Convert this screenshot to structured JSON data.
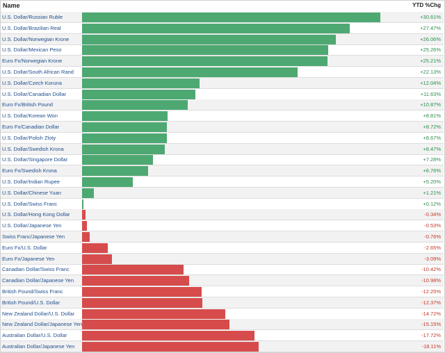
{
  "header": {
    "name_label": "Name",
    "value_label": "YTD %Chg"
  },
  "colors": {
    "positive": "#4ea872",
    "negative": "#d64c4c",
    "positive_text": "#2e8b4f",
    "negative_text": "#c0392b"
  },
  "chart_data": {
    "type": "bar",
    "orientation": "horizontal",
    "title": "",
    "xlabel": "",
    "ylabel": "",
    "grid": false,
    "categories": [
      "U.S. Dollar/Russian Ruble",
      "U.S. Dollar/Brazilian Real",
      "U.S. Dollar/Norwegian Krone",
      "U.S. Dollar/Mexican Peso",
      "Euro Fx/Norwegian Krone",
      "U.S. Dollar/South African Rand",
      "U.S. Dollar/Czech Koruna",
      "U.S. Dollar/Canadian Dollar",
      "Euro Fx/British Pound",
      "U.S. Dollar/Korean Won",
      "Euro Fx/Canadian Dollar",
      "U.S. Dollar/Polish Zloty",
      "U.S. Dollar/Swedish Krona",
      "U.S. Dollar/Singapore Dollar",
      "Euro Fx/Swedish Krona",
      "U.S. Dollar/Indian Rupee",
      "U.S. Dollar/Chinese Yuan",
      "U.S. Dollar/Swiss Franc",
      "U.S. Dollar/Hong Kong Dollar",
      "U.S. Dollar/Japanese Yen",
      "Swiss Franc/Japanese Yen",
      "Euro Fx/U.S. Dollar",
      "Euro Fx/Japanese Yen",
      "Canadian Dollar/Swiss Franc",
      "Canadian Dollar/Japanese Yen",
      "British Pound/Swiss Franc",
      "British Pound/U.S. Dollar",
      "New Zealand Dollar/U.S. Dollar",
      "New Zealand Dollar/Japanese Yen",
      "Australian Dollar/U.S. Dollar",
      "Australian Dollar/Japanese Yen"
    ],
    "values": [
      30.61,
      27.47,
      26.06,
      25.26,
      25.21,
      22.13,
      12.04,
      11.63,
      10.87,
      8.81,
      8.72,
      8.67,
      8.47,
      7.28,
      6.76,
      5.2,
      1.21,
      0.12,
      -0.34,
      -0.53,
      -0.76,
      -2.65,
      -3.09,
      -10.42,
      -10.98,
      -12.25,
      -12.37,
      -14.72,
      -15.15,
      -17.72,
      -18.11
    ],
    "value_labels": [
      "+30.61%",
      "+27.47%",
      "+26.06%",
      "+25.26%",
      "+25.21%",
      "+22.13%",
      "+12.04%",
      "+11.63%",
      "+10.87%",
      "+8.81%",
      "+8.72%",
      "+8.67%",
      "+8.47%",
      "+7.28%",
      "+6.76%",
      "+5.20%",
      "+1.21%",
      "+0.12%",
      "-0.34%",
      "-0.53%",
      "-0.76%",
      "-2.65%",
      "-3.09%",
      "-10.42%",
      "-10.98%",
      "-12.25%",
      "-12.37%",
      "-14.72%",
      "-15.15%",
      "-17.72%",
      "-18.11%"
    ],
    "bar_scale_max_abs": 30.61
  }
}
